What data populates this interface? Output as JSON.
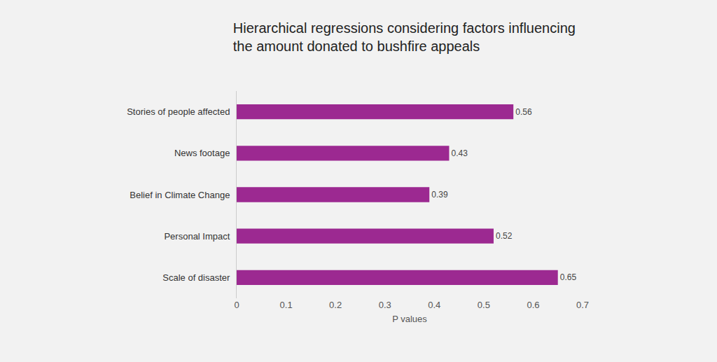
{
  "chart_data": {
    "type": "bar",
    "orientation": "horizontal",
    "title": "Hierarchical regressions considering factors influencing\nthe amount donated to bushfire appeals",
    "x_label": "P values",
    "categories": [
      "Stories of people affected",
      "News footage",
      "Belief in Climate Change",
      "Personal Impact",
      "Scale of disaster"
    ],
    "values": [
      0.56,
      0.43,
      0.39,
      0.52,
      0.65
    ],
    "color": "#9c2991",
    "xlim": [
      0,
      0.7
    ],
    "xticks": [
      0,
      0.1,
      0.2,
      0.3,
      0.4,
      0.5,
      0.6,
      0.7
    ],
    "grid": false,
    "data_labels": true
  }
}
